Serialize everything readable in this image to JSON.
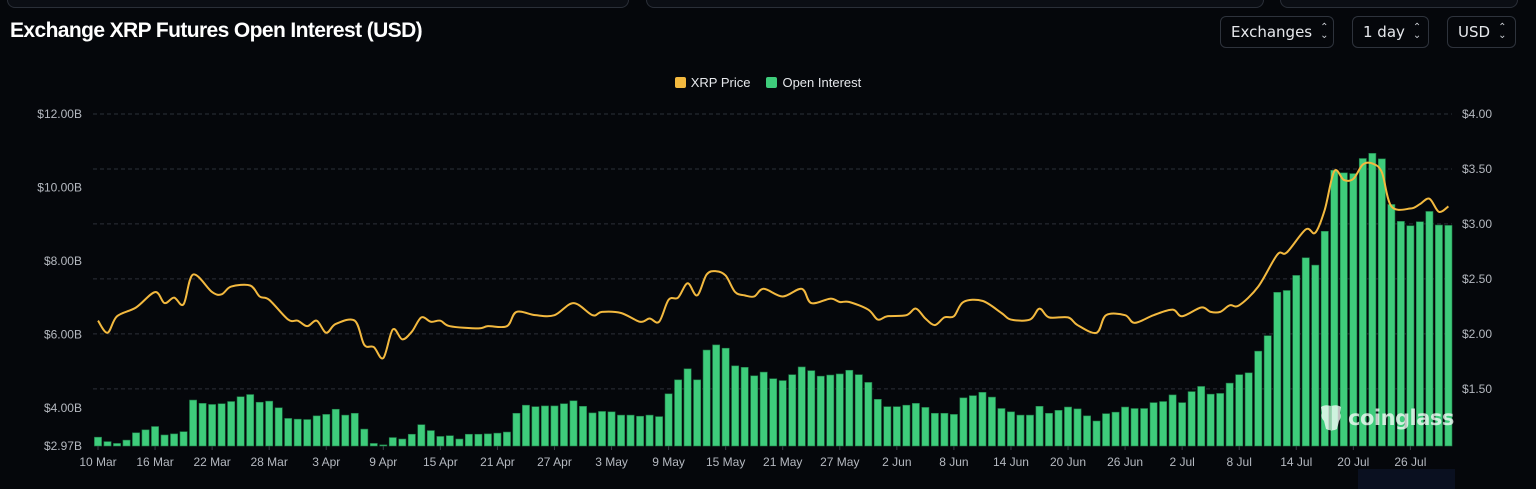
{
  "title": "Exchange XRP Futures Open Interest (USD)",
  "controls": {
    "exchanges": "Exchanges",
    "interval": "1 day",
    "currency": "USD"
  },
  "watermark": "coinglass",
  "colors": {
    "price": "#f3b93f",
    "oi": "#3ecc7b",
    "background": "#05070b",
    "grid": "#2c3038"
  },
  "chart_data": {
    "type": "bar+line",
    "title": "Exchange XRP Futures Open Interest (USD)",
    "legend": [
      {
        "name": "XRP Price",
        "type": "line"
      },
      {
        "name": "Open Interest",
        "type": "bar"
      }
    ],
    "legend_position": "top-center",
    "x_start": "10 Mar",
    "x_step": "1 day",
    "x_ticks": [
      "10 Mar",
      "16 Mar",
      "22 Mar",
      "28 Mar",
      "3 Apr",
      "9 Apr",
      "15 Apr",
      "21 Apr",
      "27 Apr",
      "3 May",
      "9 May",
      "15 May",
      "21 May",
      "27 May",
      "2 Jun",
      "8 Jun",
      "14 Jun",
      "20 Jun",
      "26 Jun",
      "2 Jul",
      "8 Jul",
      "14 Jul",
      "20 Jul",
      "26 Jul"
    ],
    "x_tick_every_days": 6,
    "y_left": {
      "label": "Open Interest (USD)",
      "ticks": [
        "$2.97B",
        "$4.00B",
        "$6.00B",
        "$8.00B",
        "$10.00B",
        "$12.00B"
      ],
      "tick_values": [
        2.97,
        4,
        6,
        8,
        10,
        12
      ],
      "range": [
        2.97,
        12
      ]
    },
    "y_right": {
      "label": "XRP Price",
      "ticks": [
        "$1.50",
        "$2.00",
        "$2.50",
        "$3.00",
        "$3.50",
        "$4.00"
      ],
      "tick_values": [
        1.5,
        2,
        2.5,
        3,
        3.5,
        4
      ],
      "range": [
        0.98,
        4
      ]
    },
    "grid": true,
    "open_interest_billions": [
      3.21,
      3.09,
      3.04,
      3.13,
      3.33,
      3.41,
      3.5,
      3.27,
      3.3,
      3.36,
      4.22,
      4.13,
      4.1,
      4.12,
      4.18,
      4.31,
      4.37,
      4.16,
      4.19,
      4.01,
      3.72,
      3.7,
      3.69,
      3.79,
      3.83,
      3.97,
      3.81,
      3.86,
      3.43,
      3.04,
      3.0,
      3.2,
      3.16,
      3.29,
      3.55,
      3.39,
      3.23,
      3.25,
      3.16,
      3.29,
      3.29,
      3.3,
      3.32,
      3.35,
      3.86,
      4.08,
      4.04,
      4.06,
      4.06,
      4.12,
      4.2,
      4.05,
      3.87,
      3.91,
      3.9,
      3.81,
      3.81,
      3.78,
      3.81,
      3.77,
      4.39,
      4.77,
      5.07,
      4.77,
      5.58,
      5.72,
      5.63,
      5.15,
      5.11,
      4.88,
      4.98,
      4.8,
      4.75,
      4.91,
      5.12,
      5.02,
      4.87,
      4.9,
      4.93,
      5.03,
      4.91,
      4.7,
      4.24,
      4.04,
      4.04,
      4.08,
      4.13,
      4.02,
      3.86,
      3.86,
      3.83,
      4.28,
      4.34,
      4.43,
      4.3,
      3.99,
      3.9,
      3.81,
      3.81,
      4.05,
      3.86,
      3.94,
      4.03,
      3.98,
      3.79,
      3.65,
      3.85,
      3.89,
      4.03,
      3.99,
      3.99,
      4.15,
      4.18,
      4.36,
      4.15,
      4.45,
      4.59,
      4.38,
      4.4,
      4.68,
      4.91,
      4.96,
      5.55,
      5.97,
      7.15,
      7.2,
      7.61,
      8.09,
      7.89,
      8.81,
      10.47,
      10.4,
      10.38,
      10.79,
      10.93,
      10.78,
      9.54,
      9.08,
      8.96,
      9.07,
      9.35,
      8.98,
      8.97
    ],
    "xrp_price_points": [
      [
        0,
        2.12
      ],
      [
        1,
        2.01
      ],
      [
        2,
        2.16
      ],
      [
        4,
        2.24
      ],
      [
        6,
        2.38
      ],
      [
        7,
        2.28
      ],
      [
        8,
        2.33
      ],
      [
        9,
        2.27
      ],
      [
        10,
        2.54
      ],
      [
        12,
        2.38
      ],
      [
        13,
        2.36
      ],
      [
        14,
        2.43
      ],
      [
        16,
        2.44
      ],
      [
        17,
        2.34
      ],
      [
        18,
        2.31
      ],
      [
        20,
        2.13
      ],
      [
        21,
        2.12
      ],
      [
        22,
        2.07
      ],
      [
        23,
        2.12
      ],
      [
        24,
        2.01
      ],
      [
        25,
        2.09
      ],
      [
        27,
        2.12
      ],
      [
        28,
        1.9
      ],
      [
        29,
        1.88
      ],
      [
        30,
        1.78
      ],
      [
        31,
        2.04
      ],
      [
        32,
        1.95
      ],
      [
        33,
        2.02
      ],
      [
        34,
        2.15
      ],
      [
        35,
        2.11
      ],
      [
        36,
        2.12
      ],
      [
        37,
        2.07
      ],
      [
        40,
        2.05
      ],
      [
        41,
        2.07
      ],
      [
        43,
        2.07
      ],
      [
        44,
        2.2
      ],
      [
        46,
        2.17
      ],
      [
        48,
        2.17
      ],
      [
        50,
        2.28
      ],
      [
        52,
        2.17
      ],
      [
        53,
        2.2
      ],
      [
        55,
        2.19
      ],
      [
        57,
        2.11
      ],
      [
        58,
        2.14
      ],
      [
        59,
        2.11
      ],
      [
        60,
        2.31
      ],
      [
        61,
        2.33
      ],
      [
        62,
        2.46
      ],
      [
        63,
        2.35
      ],
      [
        64,
        2.54
      ],
      [
        65,
        2.57
      ],
      [
        66,
        2.53
      ],
      [
        67,
        2.38
      ],
      [
        68,
        2.35
      ],
      [
        69,
        2.34
      ],
      [
        70,
        2.41
      ],
      [
        72,
        2.34
      ],
      [
        74,
        2.41
      ],
      [
        75,
        2.28
      ],
      [
        77,
        2.32
      ],
      [
        78,
        2.29
      ],
      [
        79,
        2.29
      ],
      [
        81,
        2.22
      ],
      [
        82,
        2.13
      ],
      [
        83,
        2.16
      ],
      [
        85,
        2.17
      ],
      [
        86,
        2.23
      ],
      [
        87,
        2.14
      ],
      [
        88,
        2.08
      ],
      [
        89,
        2.15
      ],
      [
        90,
        2.16
      ],
      [
        91,
        2.29
      ],
      [
        93,
        2.3
      ],
      [
        95,
        2.19
      ],
      [
        96,
        2.13
      ],
      [
        98,
        2.13
      ],
      [
        99,
        2.23
      ],
      [
        100,
        2.15
      ],
      [
        102,
        2.15
      ],
      [
        103,
        2.08
      ],
      [
        105,
        2.01
      ],
      [
        106,
        2.17
      ],
      [
        108,
        2.17
      ],
      [
        109,
        2.1
      ],
      [
        111,
        2.17
      ],
      [
        113,
        2.22
      ],
      [
        114,
        2.16
      ],
      [
        116,
        2.24
      ],
      [
        117,
        2.2
      ],
      [
        118,
        2.2
      ],
      [
        119,
        2.26
      ],
      [
        120,
        2.26
      ],
      [
        122,
        2.43
      ],
      [
        124,
        2.72
      ],
      [
        125,
        2.74
      ],
      [
        127,
        2.95
      ],
      [
        128,
        2.92
      ],
      [
        129,
        3.13
      ],
      [
        130,
        3.48
      ],
      [
        131,
        3.4
      ],
      [
        132,
        3.41
      ],
      [
        133,
        3.54
      ],
      [
        134,
        3.55
      ],
      [
        135,
        3.47
      ],
      [
        136,
        3.16
      ],
      [
        138,
        3.14
      ],
      [
        139,
        3.18
      ],
      [
        140,
        3.23
      ],
      [
        141,
        3.11
      ],
      [
        142,
        3.16
      ]
    ]
  }
}
